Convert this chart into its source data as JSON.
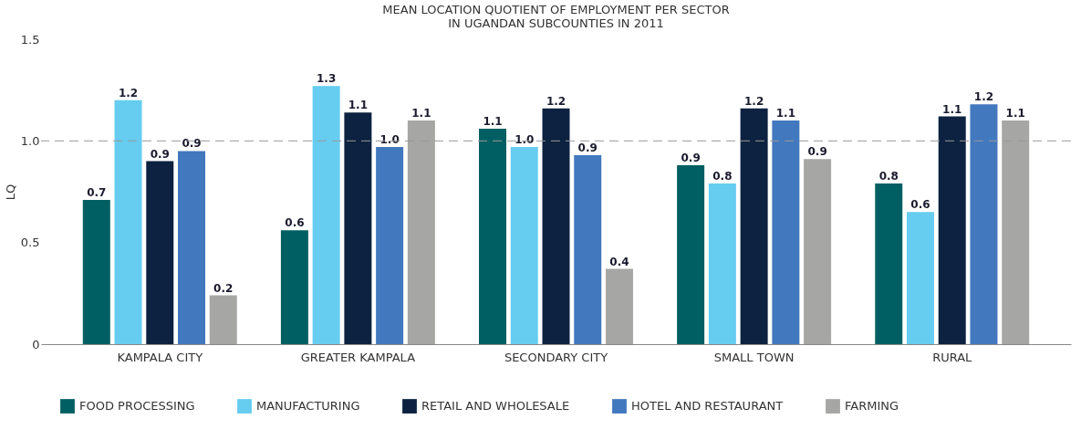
{
  "chart_data": {
    "type": "bar",
    "title": "MEAN LOCATION QUOTIENT OF EMPLOYMENT PER SECTOR\nIN UGANDAN SUBCOUNTIES IN 2011",
    "ylabel": "LQ",
    "categories": [
      "KAMPALA CITY",
      "GREATER KAMPALA",
      "SECONDARY CITY",
      "SMALL TOWN",
      "RURAL"
    ],
    "series": [
      {
        "name": "FOOD PROCESSING",
        "color": "#005f62",
        "values": [
          0.71,
          0.56,
          1.06,
          0.88,
          0.79
        ],
        "value_labels": [
          "0.7",
          "0.6",
          "1.1",
          "0.9",
          "0.8"
        ]
      },
      {
        "name": "MANUFACTURING",
        "color": "#66ccf0",
        "values": [
          1.2,
          1.27,
          0.97,
          0.79,
          0.65
        ],
        "value_labels": [
          "1.2",
          "1.3",
          "1.0",
          "0.8",
          "0.6"
        ]
      },
      {
        "name": "RETAIL AND WHOLESALE",
        "color": "#0c2240",
        "values": [
          0.9,
          1.14,
          1.16,
          1.16,
          1.12
        ],
        "value_labels": [
          "0.9",
          "1.1",
          "1.2",
          "1.2",
          "1.1"
        ]
      },
      {
        "name": "HOTEL AND RESTAURANT",
        "color": "#4278be",
        "values": [
          0.95,
          0.97,
          0.93,
          1.1,
          1.18
        ],
        "value_labels": [
          "0.9",
          "1.0",
          "0.9",
          "1.1",
          "1.2"
        ]
      },
      {
        "name": "FARMING",
        "color": "#a6a6a4",
        "values": [
          0.24,
          1.1,
          0.37,
          0.91,
          1.1
        ],
        "value_labels": [
          "0.2",
          "1.1",
          "0.4",
          "0.9",
          "1.1"
        ]
      }
    ],
    "ylim": [
      0,
      1.5
    ],
    "yticks": [
      0,
      {
        "value": 0.5,
        "label": "0.5"
      },
      {
        "value": 1.0,
        "label": "1.0"
      },
      {
        "value": 1.5,
        "label": "1.5"
      }
    ],
    "ref_lines": [
      {
        "axis": "y",
        "value": 1.0,
        "label": null,
        "color": "#999999",
        "line_style": "dashed"
      }
    ],
    "grid": false,
    "legend": "bottom"
  }
}
